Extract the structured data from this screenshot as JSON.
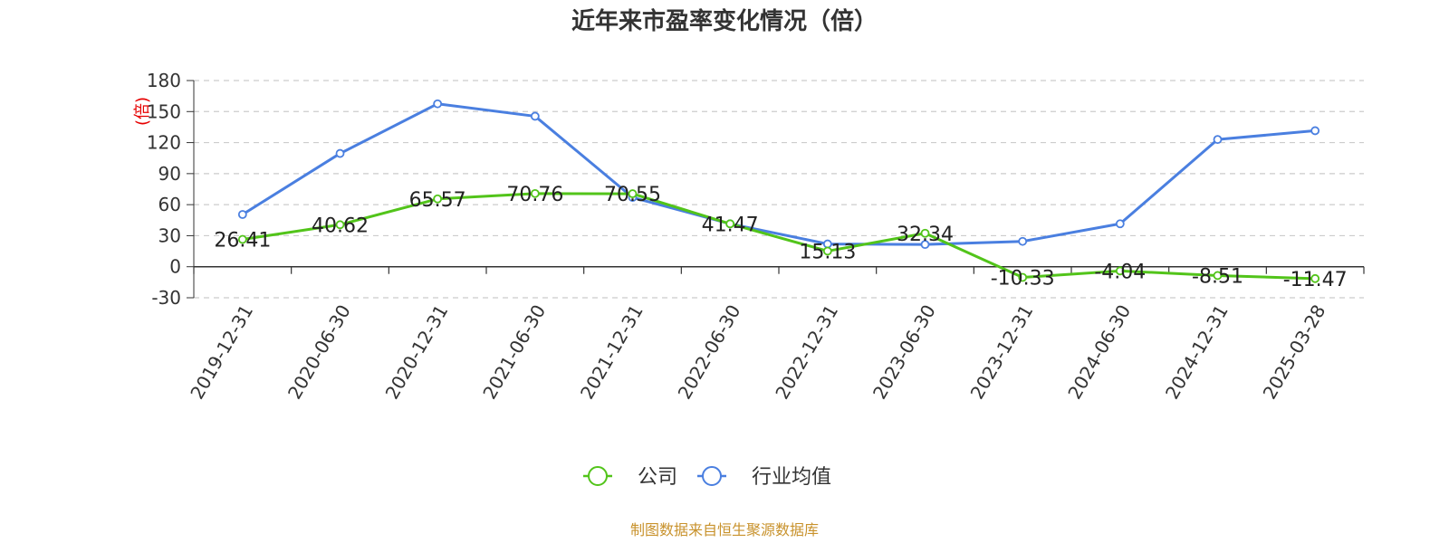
{
  "chart_data": {
    "type": "line",
    "title": "近年来市盈率变化情况（倍）",
    "ylabel": "(倍)",
    "ylim": [
      -30,
      180
    ],
    "yticks": [
      -30,
      0,
      30,
      60,
      90,
      120,
      150,
      180
    ],
    "grid": true,
    "legend_position": "bottom",
    "categories": [
      "2019-12-31",
      "2020-06-30",
      "2020-12-31",
      "2021-06-30",
      "2021-12-31",
      "2022-06-30",
      "2022-12-31",
      "2023-06-30",
      "2023-12-31",
      "2024-06-30",
      "2024-12-31",
      "2025-03-28"
    ],
    "series": [
      {
        "name": "公司",
        "color": "#52c41a",
        "values": [
          26.41,
          40.62,
          65.57,
          70.76,
          70.55,
          41.47,
          15.13,
          32.34,
          -10.33,
          -4.04,
          -8.51,
          -11.47
        ],
        "labels": [
          "26.41",
          "40.62",
          "65.57",
          "70.76",
          "70.55",
          "41.47",
          "15.13",
          "32.34",
          "-10.33",
          "-4.04",
          "-8.51",
          "-11.47"
        ]
      },
      {
        "name": "行业均值",
        "color": "#4a7fe0",
        "values": [
          50.5,
          109.5,
          157.5,
          145.5,
          67.0,
          41.5,
          22.0,
          21.5,
          24.5,
          41.5,
          123.0,
          131.5
        ]
      }
    ]
  },
  "source_note": "制图数据来自恒生聚源数据库"
}
